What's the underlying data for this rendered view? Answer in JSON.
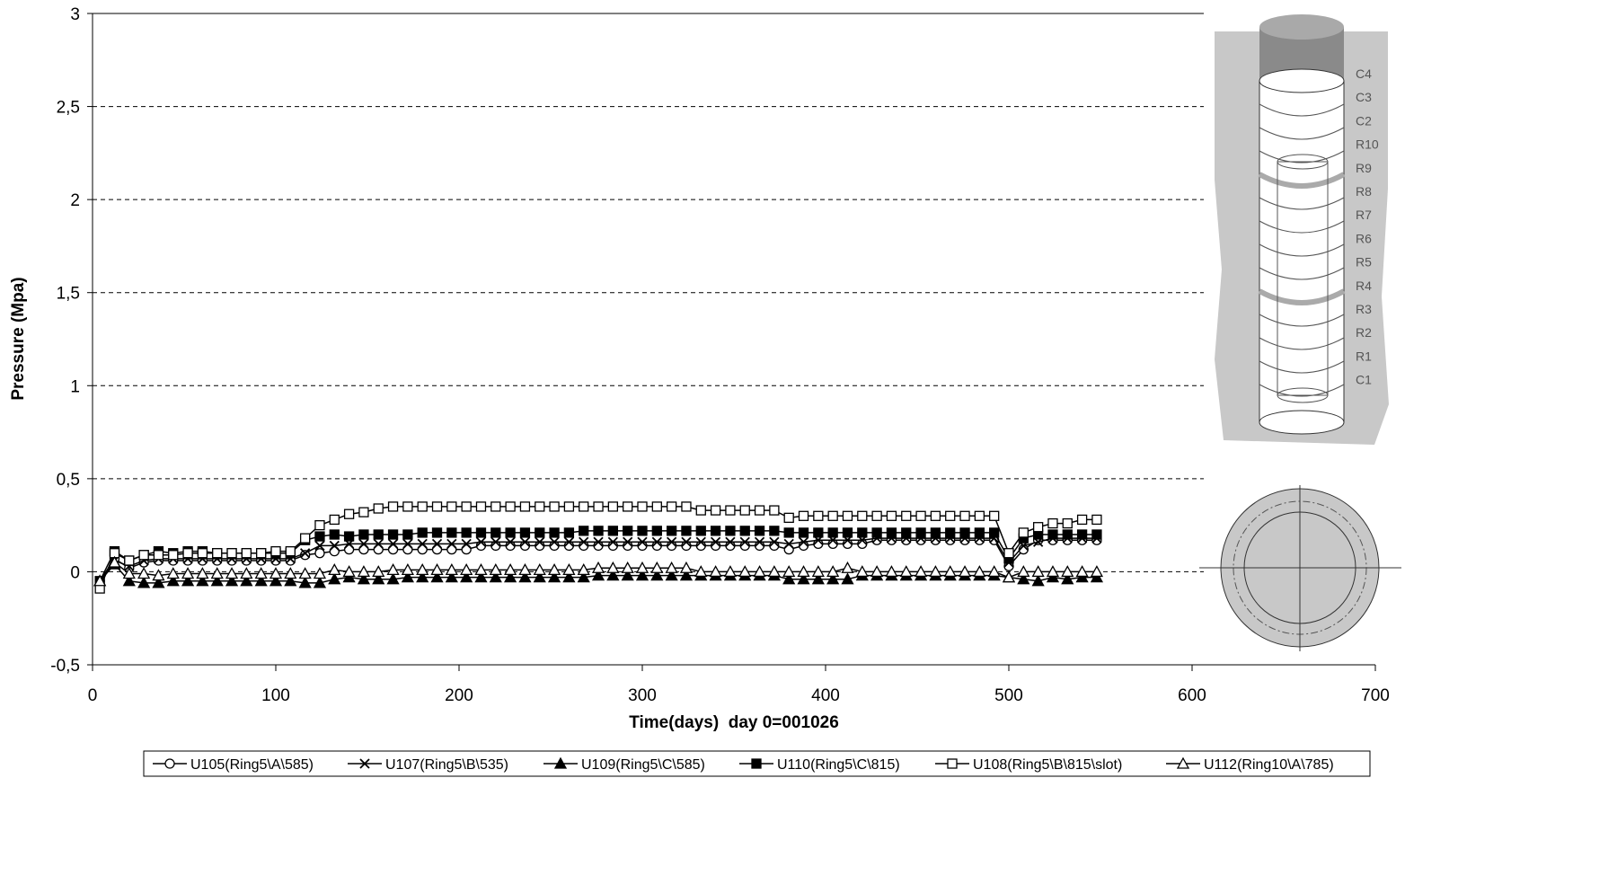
{
  "chart_data": {
    "type": "line",
    "y_label": "Pressure (Mpa)",
    "x_label": "Time(days)  day 0=001026",
    "xlim": [
      0,
      700
    ],
    "xticks": [
      0,
      100,
      200,
      300,
      400,
      500,
      600,
      700
    ],
    "ylim": [
      -0.5,
      3
    ],
    "yticks": [
      {
        "value": -0.5,
        "label": "-0,5"
      },
      0,
      {
        "value": 0.5,
        "label": "0,5"
      },
      1,
      {
        "value": 1.5,
        "label": "1,5"
      },
      2,
      {
        "value": 2.5,
        "label": "2,5"
      },
      3
    ],
    "grid": true,
    "annotations": [
      "C4",
      "C3",
      "C2",
      "R10",
      "R9",
      "R8",
      "R7",
      "R6",
      "R5",
      "R4",
      "R3",
      "R2",
      "R1",
      "C1"
    ],
    "x": [
      4,
      12,
      20,
      28,
      36,
      44,
      52,
      60,
      68,
      76,
      84,
      92,
      100,
      108,
      116,
      124,
      132,
      140,
      148,
      156,
      164,
      172,
      180,
      188,
      196,
      204,
      212,
      220,
      228,
      236,
      244,
      252,
      260,
      268,
      276,
      284,
      292,
      300,
      308,
      316,
      324,
      332,
      340,
      348,
      356,
      364,
      372,
      380,
      388,
      396,
      404,
      412,
      420,
      428,
      436,
      444,
      452,
      460,
      468,
      476,
      484,
      492,
      500,
      508,
      516,
      524,
      532,
      540,
      548
    ],
    "series": [
      {
        "name": "U105(Ring5\\A\\585)",
        "color": "#000000",
        "marker": "circle-open",
        "values": [
          -0.05,
          0.07,
          0.02,
          0.05,
          0.06,
          0.06,
          0.06,
          0.06,
          0.06,
          0.06,
          0.06,
          0.06,
          0.06,
          0.06,
          0.09,
          0.1,
          0.11,
          0.12,
          0.12,
          0.12,
          0.12,
          0.12,
          0.12,
          0.12,
          0.12,
          0.12,
          0.14,
          0.14,
          0.14,
          0.14,
          0.14,
          0.14,
          0.14,
          0.14,
          0.14,
          0.14,
          0.14,
          0.14,
          0.14,
          0.14,
          0.14,
          0.14,
          0.14,
          0.14,
          0.14,
          0.14,
          0.14,
          0.12,
          0.14,
          0.15,
          0.15,
          0.15,
          0.15,
          0.17,
          0.17,
          0.17,
          0.17,
          0.17,
          0.17,
          0.17,
          0.17,
          0.17,
          0.03,
          0.12,
          0.17,
          0.17,
          0.17,
          0.17,
          0.17
        ]
      },
      {
        "name": "U107(Ring5\\B\\535)",
        "color": "#000000",
        "marker": "cross",
        "values": [
          -0.05,
          0.06,
          0.03,
          0.06,
          0.07,
          0.07,
          0.07,
          0.07,
          0.07,
          0.07,
          0.07,
          0.07,
          0.07,
          0.07,
          0.1,
          0.14,
          0.14,
          0.15,
          0.15,
          0.15,
          0.15,
          0.15,
          0.15,
          0.15,
          0.15,
          0.15,
          0.16,
          0.16,
          0.16,
          0.16,
          0.16,
          0.16,
          0.16,
          0.16,
          0.16,
          0.16,
          0.16,
          0.16,
          0.16,
          0.16,
          0.16,
          0.16,
          0.16,
          0.16,
          0.16,
          0.16,
          0.16,
          0.15,
          0.16,
          0.17,
          0.17,
          0.17,
          0.17,
          0.18,
          0.18,
          0.18,
          0.18,
          0.18,
          0.18,
          0.18,
          0.18,
          0.18,
          0.05,
          0.14,
          0.16,
          0.18,
          0.18,
          0.18,
          0.18
        ]
      },
      {
        "name": "U109(Ring5\\C\\585)",
        "color": "#000000",
        "marker": "triangle-filled",
        "values": [
          -0.05,
          0.04,
          -0.05,
          -0.06,
          -0.06,
          -0.05,
          -0.05,
          -0.05,
          -0.05,
          -0.05,
          -0.05,
          -0.05,
          -0.05,
          -0.05,
          -0.06,
          -0.06,
          -0.04,
          -0.03,
          -0.04,
          -0.04,
          -0.04,
          -0.03,
          -0.03,
          -0.03,
          -0.03,
          -0.03,
          -0.03,
          -0.03,
          -0.03,
          -0.03,
          -0.03,
          -0.03,
          -0.03,
          -0.03,
          -0.02,
          -0.02,
          -0.02,
          -0.02,
          -0.02,
          -0.02,
          -0.02,
          -0.02,
          -0.02,
          -0.02,
          -0.02,
          -0.02,
          -0.02,
          -0.04,
          -0.04,
          -0.04,
          -0.04,
          -0.04,
          -0.02,
          -0.02,
          -0.02,
          -0.02,
          -0.02,
          -0.02,
          -0.02,
          -0.02,
          -0.02,
          -0.02,
          -0.03,
          -0.04,
          -0.05,
          -0.03,
          -0.04,
          -0.03,
          -0.03
        ]
      },
      {
        "name": "U110(Ring5\\C\\815)",
        "color": "#000000",
        "marker": "square-filled",
        "values": [
          -0.05,
          0.11,
          0.06,
          0.09,
          0.11,
          0.1,
          0.11,
          0.11,
          0.1,
          0.1,
          0.1,
          0.1,
          0.1,
          0.1,
          0.17,
          0.19,
          0.2,
          0.19,
          0.2,
          0.2,
          0.2,
          0.2,
          0.21,
          0.21,
          0.21,
          0.21,
          0.21,
          0.21,
          0.21,
          0.21,
          0.21,
          0.21,
          0.21,
          0.22,
          0.22,
          0.22,
          0.22,
          0.22,
          0.22,
          0.22,
          0.22,
          0.22,
          0.22,
          0.22,
          0.22,
          0.22,
          0.22,
          0.21,
          0.21,
          0.21,
          0.21,
          0.21,
          0.21,
          0.21,
          0.21,
          0.21,
          0.21,
          0.21,
          0.21,
          0.21,
          0.21,
          0.21,
          0.07,
          0.18,
          0.2,
          0.2,
          0.2,
          0.2,
          0.2
        ]
      },
      {
        "name": "U108(Ring5\\B\\815\\slot)",
        "color": "#000000",
        "marker": "square-open",
        "values": [
          -0.09,
          0.1,
          0.06,
          0.09,
          0.09,
          0.09,
          0.1,
          0.1,
          0.1,
          0.1,
          0.1,
          0.1,
          0.11,
          0.11,
          0.18,
          0.25,
          0.28,
          0.31,
          0.32,
          0.34,
          0.35,
          0.35,
          0.35,
          0.35,
          0.35,
          0.35,
          0.35,
          0.35,
          0.35,
          0.35,
          0.35,
          0.35,
          0.35,
          0.35,
          0.35,
          0.35,
          0.35,
          0.35,
          0.35,
          0.35,
          0.35,
          0.33,
          0.33,
          0.33,
          0.33,
          0.33,
          0.33,
          0.29,
          0.3,
          0.3,
          0.3,
          0.3,
          0.3,
          0.3,
          0.3,
          0.3,
          0.3,
          0.3,
          0.3,
          0.3,
          0.3,
          0.3,
          0.1,
          0.21,
          0.24,
          0.26,
          0.26,
          0.28,
          0.28
        ]
      },
      {
        "name": "U112(Ring10\\A\\785)",
        "color": "#000000",
        "marker": "triangle-open",
        "values": [
          -0.05,
          0.05,
          -0.01,
          -0.01,
          -0.02,
          -0.01,
          -0.01,
          -0.01,
          -0.01,
          -0.01,
          -0.01,
          -0.01,
          -0.01,
          -0.01,
          -0.01,
          -0.01,
          0.01,
          0,
          0,
          0,
          0.01,
          0.01,
          0.01,
          0.01,
          0.01,
          0.01,
          0.01,
          0.01,
          0.01,
          0.01,
          0.01,
          0.01,
          0.01,
          0.01,
          0.02,
          0.02,
          0.02,
          0.02,
          0.02,
          0.02,
          0.02,
          0,
          0,
          0,
          0,
          0,
          0,
          0,
          0,
          0,
          0,
          0.02,
          0,
          0,
          0,
          0,
          0,
          0,
          0,
          0,
          0,
          0,
          -0.03,
          0,
          0,
          0,
          0,
          0,
          0
        ]
      }
    ]
  }
}
